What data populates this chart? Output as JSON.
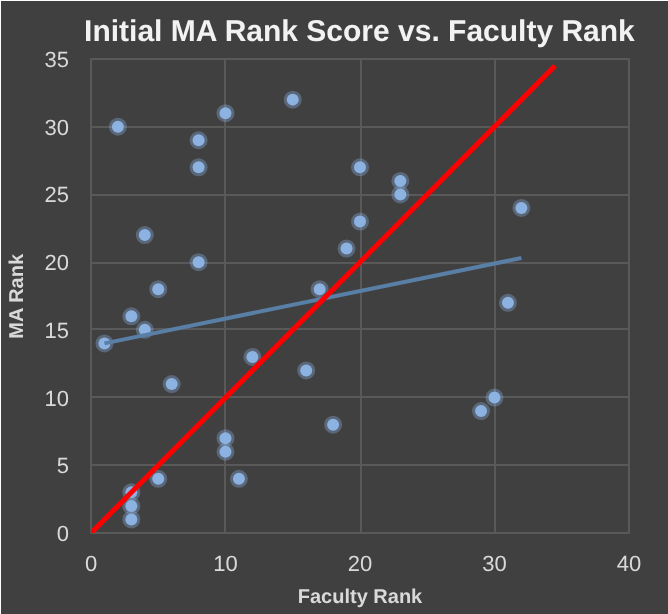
{
  "chart_data": {
    "type": "scatter",
    "title": "Initial MA Rank Score vs. Faculty Rank",
    "xlabel": "Faculty Rank",
    "ylabel": "MA Rank",
    "xlim": [
      0,
      40
    ],
    "ylim": [
      0,
      35
    ],
    "xticks": [
      0,
      10,
      20,
      30,
      40
    ],
    "yticks": [
      0,
      5,
      10,
      15,
      20,
      25,
      30,
      35
    ],
    "grid": true,
    "series": [
      {
        "marker": "circle",
        "color": "#8db3e2",
        "x": [
          1,
          2,
          3,
          3,
          3,
          3,
          4,
          4,
          5,
          5,
          6,
          8,
          8,
          8,
          10,
          10,
          10,
          11,
          12,
          15,
          16,
          17,
          18,
          19,
          20,
          20,
          23,
          23,
          29,
          30,
          31,
          32
        ],
        "values": [
          14,
          30,
          16,
          3,
          2,
          1,
          22,
          15,
          18,
          4,
          11,
          29,
          27,
          20,
          31,
          7,
          6,
          4,
          13,
          32,
          12,
          18,
          8,
          21,
          27,
          23,
          26,
          25,
          9,
          10,
          17,
          24
        ]
      },
      {
        "type": "line",
        "color": "#5a7fa6",
        "x": [
          1,
          32
        ],
        "values": [
          14,
          20.3
        ]
      },
      {
        "type": "line",
        "color": "#ff0000",
        "x": [
          0,
          34.5
        ],
        "values": [
          0,
          34.5
        ]
      }
    ]
  }
}
